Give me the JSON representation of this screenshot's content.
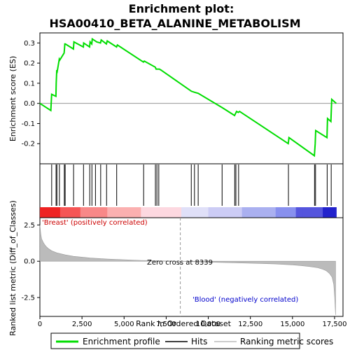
{
  "chart_data": {
    "type": "line",
    "title_line1": "Enrichment plot:",
    "title_line2": "HSA00410_BETA_ALANINE_METABOLISM",
    "top_panel": {
      "ylabel": "Enrichment score (ES)",
      "ylim": [
        -0.3,
        0.35
      ],
      "yticks": [
        -0.2,
        -0.1,
        0.0,
        0.1,
        0.2,
        0.3
      ],
      "ytick_labels": [
        "-0.2",
        "-0.1",
        "0.0",
        "0.1",
        "0.2",
        "0.3"
      ],
      "color": "#00dd00",
      "series": [
        {
          "x": [
            0,
            650,
            700,
            950,
            970,
            1000,
            1030,
            1150,
            1180,
            1440,
            1460,
            1480,
            1510,
            1990,
            2020,
            2580,
            2600,
            2950,
            2980,
            3080,
            3110,
            3380,
            3600,
            3640,
            3950,
            4000,
            4550,
            4600,
            6150,
            6200,
            6850,
            6900,
            7050,
            7100,
            7200,
            9000,
            9200,
            9400,
            10800,
            10900,
            11560,
            11620,
            11680,
            11780,
            11860,
            14750,
            14790,
            16300,
            16350,
            16380,
            17050,
            17080,
            17280,
            17330,
            17600
          ],
          "y": [
            0.0,
            -0.035,
            0.045,
            0.035,
            0.1,
            0.165,
            0.16,
            0.22,
            0.215,
            0.25,
            0.27,
            0.295,
            0.295,
            0.27,
            0.305,
            0.28,
            0.3,
            0.28,
            0.305,
            0.295,
            0.32,
            0.305,
            0.3,
            0.315,
            0.295,
            0.31,
            0.28,
            0.29,
            0.205,
            0.21,
            0.18,
            0.17,
            0.17,
            0.17,
            0.165,
            0.06,
            0.055,
            0.05,
            -0.02,
            -0.025,
            -0.06,
            -0.05,
            -0.04,
            -0.045,
            -0.04,
            -0.2,
            -0.17,
            -0.26,
            -0.2,
            -0.135,
            -0.17,
            -0.075,
            -0.09,
            0.02,
            0.0
          ]
        }
      ]
    },
    "hits_panel": {
      "hit_positions": [
        700,
        960,
        1010,
        1160,
        1450,
        1500,
        2000,
        2590,
        2960,
        3090,
        3300,
        3610,
        3960,
        4560,
        6160,
        6860,
        6950,
        7060,
        8990,
        9180,
        9400,
        10820,
        11570,
        11640,
        11800,
        14760,
        16310,
        16370,
        17060,
        17300
      ]
    },
    "bottom_panel": {
      "ylabel": "Ranked list metric (Diff_of_Classes)",
      "ylim": [
        -3.8,
        3.0
      ],
      "yticks": [
        -2.5,
        0.0,
        2.5
      ],
      "ytick_labels": [
        "-2.5",
        "0.0",
        "2.5"
      ],
      "metric_x": [
        0,
        50,
        100,
        200,
        300,
        400,
        500,
        700,
        1000,
        1500,
        2000,
        3000,
        4000,
        5000,
        6000,
        7000,
        8339,
        9000,
        10000,
        11000,
        12000,
        13000,
        14000,
        15000,
        15500,
        16000,
        16500,
        16800,
        17000,
        17200,
        17350,
        17450,
        17500,
        17560
      ],
      "metric_y": [
        2.5,
        1.9,
        1.55,
        1.3,
        1.12,
        0.98,
        0.88,
        0.72,
        0.58,
        0.44,
        0.34,
        0.22,
        0.15,
        0.1,
        0.06,
        0.03,
        0.0,
        -0.03,
        -0.06,
        -0.09,
        -0.12,
        -0.15,
        -0.19,
        -0.25,
        -0.3,
        -0.36,
        -0.45,
        -0.55,
        -0.65,
        -0.85,
        -1.1,
        -1.6,
        -2.4,
        -3.7
      ],
      "zero_cross_label": "Zero cross at 8339",
      "zero_cross_x": 8339,
      "pos_label": "'Breast' (positively correlated)",
      "neg_label": "'Blood' (negatively correlated)"
    },
    "xaxis": {
      "xlabel": "Rank in Ordered Dataset",
      "xlim": [
        0,
        18000
      ],
      "xticks": [
        0,
        2500,
        5000,
        7500,
        10000,
        12500,
        15000,
        17500
      ],
      "xtick_labels": [
        "0",
        "2,500",
        "5,000",
        "7,500",
        "10,000",
        "12,500",
        "15,000",
        "17,500"
      ],
      "n_genes": 17600
    },
    "legend": {
      "entries": [
        {
          "label": "Enrichment profile",
          "color": "#00dd00"
        },
        {
          "label": "Hits",
          "color": "#000000"
        },
        {
          "label": "Ranking metric scores",
          "color": "#bbbbbb"
        }
      ],
      "placement": "bottom"
    }
  }
}
